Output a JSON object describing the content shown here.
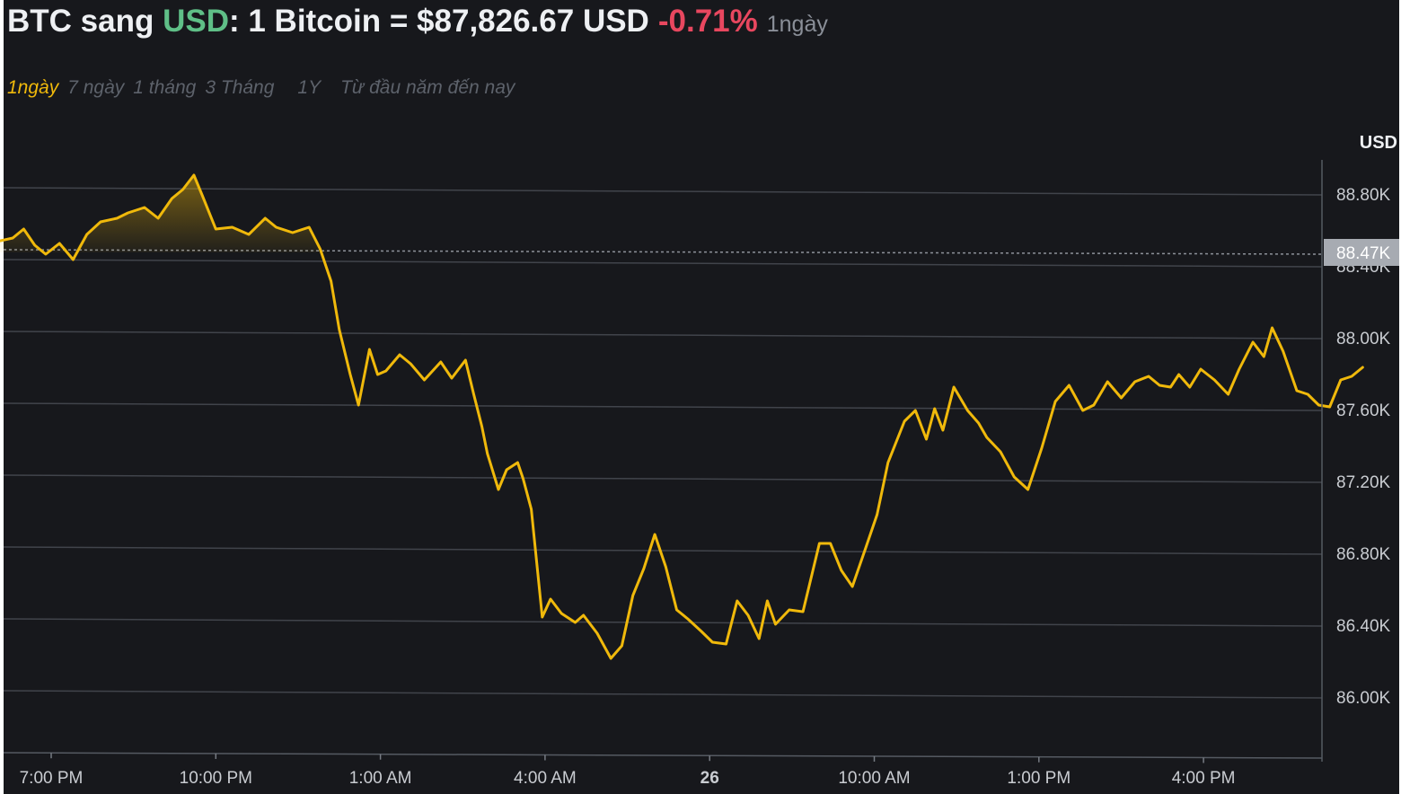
{
  "header": {
    "base": "BTC",
    "sang": " sang ",
    "quote": "USD",
    "rest": ": 1 Bitcoin = $87,826.67 USD",
    "change": "-0.71%",
    "period": "1ngày"
  },
  "tabs": [
    {
      "label": "1ngày",
      "active": true
    },
    {
      "label": "7 ngày",
      "active": false
    },
    {
      "label": "1 tháng",
      "active": false
    },
    {
      "label": "3 Tháng",
      "active": false
    },
    {
      "label": "1Y",
      "active": false
    },
    {
      "label": "Từ đầu năm đến nay",
      "active": false
    }
  ],
  "colors": {
    "background": "#17181c",
    "line": "#f0b90b",
    "up": "#5fbf87",
    "down": "#e8475f",
    "grid": "#41444b"
  },
  "chart_data": {
    "type": "line",
    "currency_label": "USD",
    "reference_line_value": 88.47,
    "reference_label": "88.47K",
    "ylim": [
      85.8,
      89.1
    ],
    "y_ticks": [
      86.0,
      86.4,
      86.8,
      87.2,
      87.6,
      88.0,
      88.4,
      88.8
    ],
    "y_tick_labels": [
      "86.00K",
      "86.40K",
      "86.80K",
      "87.20K",
      "87.60K",
      "88.00K",
      "88.40K",
      "88.80K"
    ],
    "x_range": [
      18.0,
      42.9
    ],
    "x_ticks": [
      19,
      22,
      25,
      28,
      31,
      34,
      37,
      40
    ],
    "x_tick_labels": [
      "7:00 PM",
      "10:00 PM",
      "1:00 AM",
      "4:00 AM",
      "26",
      "10:00 AM",
      "1:00 PM",
      "4:00 PM"
    ],
    "grid": true,
    "series": [
      {
        "x": [
          18.0,
          18.3,
          18.5,
          18.7,
          18.9,
          19.15,
          19.4,
          19.65,
          19.9,
          20.2,
          20.4,
          20.7,
          20.95,
          21.2,
          21.4,
          21.6,
          21.75,
          22.0,
          22.3,
          22.6,
          22.9,
          23.1,
          23.4,
          23.7,
          23.9,
          24.1,
          24.25,
          24.45,
          24.6,
          24.8,
          24.95,
          25.1,
          25.35,
          25.55,
          25.8,
          26.1,
          26.3,
          26.55,
          26.7,
          26.85,
          26.95,
          27.15,
          27.3,
          27.5,
          27.6,
          27.75,
          27.95,
          28.1,
          28.3,
          28.55,
          28.7,
          28.95,
          29.2,
          29.4,
          29.6,
          29.8,
          30.0,
          30.2,
          30.4,
          30.6,
          30.85,
          31.05,
          31.3,
          31.5,
          31.7,
          31.9,
          32.05,
          32.2,
          32.45,
          32.7,
          33.0,
          33.2,
          33.4,
          33.6,
          33.85,
          34.05,
          34.25,
          34.55,
          34.75,
          34.95,
          35.1,
          35.25,
          35.45,
          35.7,
          35.9,
          36.05,
          36.3,
          36.55,
          36.8,
          37.05,
          37.3,
          37.55,
          37.8,
          38.0,
          38.25,
          38.5,
          38.75,
          39.0,
          39.2,
          39.4,
          39.55,
          39.75,
          39.95,
          40.2,
          40.45,
          40.65,
          40.9,
          41.1,
          41.25,
          41.45,
          41.7,
          41.9,
          42.1,
          42.3,
          42.5,
          42.7,
          42.9
        ],
        "y": [
          88.53,
          88.55,
          88.6,
          88.51,
          88.46,
          88.52,
          88.43,
          88.57,
          88.64,
          88.66,
          88.69,
          88.72,
          88.66,
          88.77,
          88.82,
          88.9,
          88.79,
          88.6,
          88.61,
          88.57,
          88.66,
          88.61,
          88.58,
          88.61,
          88.49,
          88.31,
          88.04,
          87.79,
          87.62,
          87.93,
          87.79,
          87.81,
          87.9,
          87.85,
          87.76,
          87.86,
          87.77,
          87.87,
          87.68,
          87.5,
          87.35,
          87.15,
          87.26,
          87.3,
          87.21,
          87.04,
          86.44,
          86.54,
          86.46,
          86.41,
          86.45,
          86.35,
          86.21,
          86.28,
          86.56,
          86.71,
          86.9,
          86.72,
          86.48,
          86.43,
          86.36,
          86.3,
          86.29,
          86.53,
          86.45,
          86.32,
          86.53,
          86.4,
          86.48,
          86.47,
          86.85,
          86.85,
          86.7,
          86.61,
          86.83,
          87.01,
          87.3,
          87.53,
          87.59,
          87.43,
          87.6,
          87.48,
          87.72,
          87.59,
          87.52,
          87.44,
          87.36,
          87.22,
          87.15,
          87.38,
          87.64,
          87.73,
          87.59,
          87.62,
          87.75,
          87.66,
          87.75,
          87.78,
          87.73,
          87.72,
          87.79,
          87.72,
          87.82,
          87.76,
          87.68,
          87.82,
          87.97,
          87.89,
          88.05,
          87.92,
          87.7,
          87.68,
          87.62,
          87.61,
          87.76,
          87.78,
          87.83
        ]
      }
    ]
  }
}
